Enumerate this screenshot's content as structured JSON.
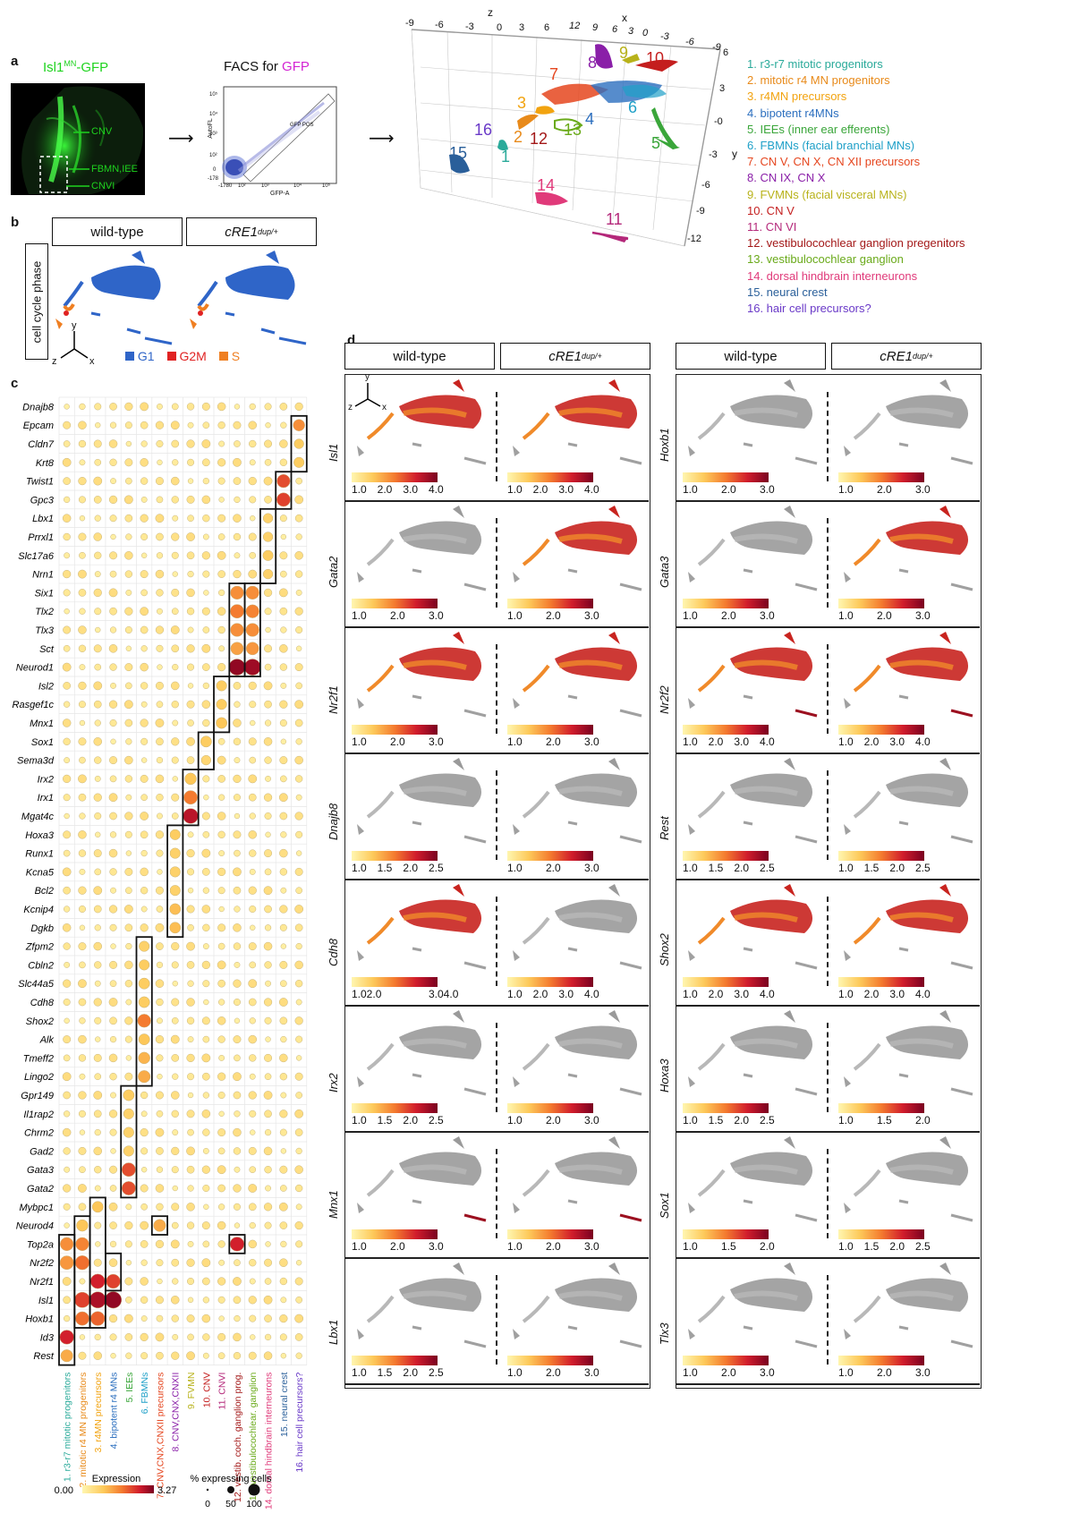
{
  "panels": {
    "a": "a",
    "b": "b",
    "c": "c",
    "d": "d"
  },
  "panel_a": {
    "micro_title_pre": "Isl1",
    "micro_title_sup": "MN",
    "micro_title_post": "-GFP",
    "micro_labels": [
      "CNV",
      "FBMN,IEE",
      "CNVI"
    ],
    "facs_title_pre": "FACS for ",
    "facs_title_gfp": "GFP",
    "facs_xlabel": "GFP-A",
    "facs_ylabel": "AutoFL",
    "facs_gate": "GFP POS",
    "facs_xticks": [
      "-178",
      "0",
      "10²",
      "10³",
      "10⁴",
      "10⁵"
    ],
    "facs_yticks": [
      "10⁵",
      "10⁴",
      "10³",
      "10²",
      "0",
      "-178"
    ],
    "axis_x_label": "x",
    "axis_y_label": "y",
    "axis_z_label": "z",
    "top_ticks": [
      "-9",
      "-6",
      "-3",
      "0",
      "3",
      "6",
      "12",
      "9",
      "6",
      "3",
      "0",
      "-3",
      "-6",
      "-9"
    ],
    "right_ticks": [
      "6",
      "3",
      "-0",
      "-3",
      "-6",
      "-9",
      "-12"
    ],
    "cluster_numbers": [
      "1",
      "2",
      "3",
      "4",
      "5",
      "6",
      "7",
      "8",
      "9",
      "10",
      "11",
      "12",
      "13",
      "14",
      "15",
      "16"
    ],
    "cluster_legend": [
      {
        "text": "1. r3-r7 mitotic progenitors",
        "color": "#2aaa9a"
      },
      {
        "text": "2. mitotic r4 MN progenitors",
        "color": "#e88a1a"
      },
      {
        "text": "3. r4MN precursors",
        "color": "#f2a30f"
      },
      {
        "text": "4. bipotent r4MNs",
        "color": "#2c6fbf"
      },
      {
        "text": "5. IEEs (inner ear efferents)",
        "color": "#3aa63a"
      },
      {
        "text": "6. FBMNs (facial branchial MNs)",
        "color": "#1fa0c8"
      },
      {
        "text": "7. CN V, CN X, CN XII precursors",
        "color": "#e5461f"
      },
      {
        "text": "8. CN IX, CN X",
        "color": "#8a1fa8"
      },
      {
        "text": "9. FVMNs (facial visceral MNs)",
        "color": "#b8b21a"
      },
      {
        "text": "10. CN V",
        "color": "#c41e1e"
      },
      {
        "text": "11. CN VI",
        "color": "#b4287a"
      },
      {
        "text": "12. vestibulocochlear ganglion pregenitors",
        "color": "#a31818"
      },
      {
        "text": "13. vestibulocochlear ganglion",
        "color": "#6aaa1a"
      },
      {
        "text": "14. dorsal hindbrain interneurons",
        "color": "#e03a7a"
      },
      {
        "text": "15. neural crest",
        "color": "#2a5f9a"
      },
      {
        "text": "16. hair cell precursors?",
        "color": "#6a3ac8"
      }
    ]
  },
  "panel_b": {
    "row_label": "cell cycle phase",
    "wt": "wild-type",
    "mut_pre": "cRE1",
    "mut_sup": "dup/+",
    "phases": [
      {
        "name": "G1",
        "color": "#2f65c8"
      },
      {
        "name": "G2M",
        "color": "#e02222"
      },
      {
        "name": "S",
        "color": "#ef7f22"
      }
    ],
    "axes": {
      "y": "y",
      "z": "z",
      "x": "x"
    }
  },
  "panel_c": {
    "genes": [
      "Dnajb8",
      "Epcam",
      "Cldn7",
      "Krt8",
      "Twist1",
      "Gpc3",
      "Lbx1",
      "Prrxl1",
      "Slc17a6",
      "Nrn1",
      "Six1",
      "Tlx2",
      "Tlx3",
      "Sct",
      "Neurod1",
      "Isl2",
      "Rasgef1c",
      "Mnx1",
      "Sox1",
      "Sema3d",
      "Irx2",
      "Irx1",
      "Mgat4c",
      "Hoxa3",
      "Runx1",
      "Kcna5",
      "Bcl2",
      "Kcnip4",
      "Dgkb",
      "Zfpm2",
      "Cbln2",
      "Slc44a5",
      "Cdh8",
      "Shox2",
      "Alk",
      "Tmeff2",
      "Lingo2",
      "Gpr149",
      "Il1rap2",
      "Chrm2",
      "Gad2",
      "Gata3",
      "Gata2",
      "Mybpc1",
      "Neurod4",
      "Top2a",
      "Nr2f2",
      "Nr2f1",
      "Isl1",
      "Hoxb1",
      "Id3",
      "Rest"
    ],
    "clusters": [
      {
        "text": "1. r3-r7 mitotic progenitors",
        "color": "#2aaa9a"
      },
      {
        "text": "2. mitotic r4 MN progenitors",
        "color": "#e88a1a"
      },
      {
        "text": "3. r4MN precursors",
        "color": "#f2a30f"
      },
      {
        "text": "4. bipotent r4 MNs",
        "color": "#2c6fbf"
      },
      {
        "text": "5. IEEs",
        "color": "#3aa63a"
      },
      {
        "text": "6. FBMNs",
        "color": "#1fa0c8"
      },
      {
        "text": "7. CNV,CNX,CNXII precursors",
        "color": "#e5461f"
      },
      {
        "text": "8. CNV,CNX,CNXII",
        "color": "#8a1fa8"
      },
      {
        "text": "9. FVMN",
        "color": "#b8b21a"
      },
      {
        "text": "10. CNV",
        "color": "#c41e1e"
      },
      {
        "text": "11. CNVI",
        "color": "#b4287a"
      },
      {
        "text": "12. vestib. coch. ganglion prog.",
        "color": "#a31818"
      },
      {
        "text": "13. vestibulocochlear. ganglion",
        "color": "#6aaa1a"
      },
      {
        "text": "14. dorsal hindbrain interneurons",
        "color": "#e03a7a"
      },
      {
        "text": "15. neural crest",
        "color": "#2a5f9a"
      },
      {
        "text": "16. hair cell precursors?",
        "color": "#6a3ac8"
      }
    ],
    "expr_title": "Expression",
    "expr_min": "0.00",
    "expr_max": "3.27",
    "pct_title": "% expressing cells",
    "pct_ticks": [
      "0",
      "50",
      "100"
    ]
  },
  "chart_data": {
    "type": "dotplot",
    "expression_range": [
      0.0,
      3.27
    ],
    "percent_range": [
      0,
      100
    ],
    "rows": [
      "Dnajb8",
      "Epcam",
      "Cldn7",
      "Krt8",
      "Twist1",
      "Gpc3",
      "Lbx1",
      "Prrxl1",
      "Slc17a6",
      "Nrn1",
      "Six1",
      "Tlx2",
      "Tlx3",
      "Sct",
      "Neurod1",
      "Isl2",
      "Rasgef1c",
      "Mnx1",
      "Sox1",
      "Sema3d",
      "Irx2",
      "Irx1",
      "Mgat4c",
      "Hoxa3",
      "Runx1",
      "Kcna5",
      "Bcl2",
      "Kcnip4",
      "Dgkb",
      "Zfpm2",
      "Cbln2",
      "Slc44a5",
      "Cdh8",
      "Shox2",
      "Alk",
      "Tmeff2",
      "Lingo2",
      "Gpr149",
      "Il1rap2",
      "Chrm2",
      "Gad2",
      "Gata3",
      "Gata2",
      "Mybpc1",
      "Neurod4",
      "Top2a",
      "Nr2f2",
      "Nr2f1",
      "Isl1",
      "Hoxb1",
      "Id3",
      "Rest"
    ],
    "highlight_blocks": [
      {
        "cluster": 16,
        "rows": [
          1,
          3
        ]
      },
      {
        "cluster": 15,
        "rows": [
          4,
          5
        ]
      },
      {
        "cluster": 14,
        "rows": [
          6,
          9
        ]
      },
      {
        "cluster": 13,
        "rows": [
          10,
          14
        ]
      },
      {
        "cluster": 12,
        "rows": [
          10,
          14
        ]
      },
      {
        "cluster": 11,
        "rows": [
          15,
          17
        ]
      },
      {
        "cluster": 10,
        "rows": [
          18,
          19
        ]
      },
      {
        "cluster": 9,
        "rows": [
          20,
          22
        ]
      },
      {
        "cluster": 8,
        "rows": [
          23,
          28
        ]
      },
      {
        "cluster": 7,
        "rows": [
          44,
          44
        ]
      },
      {
        "cluster": 6,
        "rows": [
          29,
          36
        ]
      },
      {
        "cluster": 5,
        "rows": [
          37,
          42
        ]
      },
      {
        "cluster": 4,
        "rows": [
          46,
          47
        ]
      },
      {
        "cluster": 3,
        "rows": [
          43,
          49
        ]
      },
      {
        "cluster": 2,
        "rows": [
          44,
          49
        ]
      },
      {
        "cluster": 1,
        "rows": [
          45,
          51
        ]
      },
      {
        "cluster": 12,
        "rows": [
          45,
          45
        ]
      }
    ],
    "strong_dots": [
      {
        "row": "Epcam",
        "cluster": 16,
        "expr": 1.6,
        "pct": 40
      },
      {
        "row": "Cldn7",
        "cluster": 16,
        "expr": 0.9,
        "pct": 25
      },
      {
        "row": "Krt8",
        "cluster": 16,
        "expr": 0.9,
        "pct": 30
      },
      {
        "row": "Twist1",
        "cluster": 15,
        "expr": 2.2,
        "pct": 55
      },
      {
        "row": "Gpc3",
        "cluster": 15,
        "expr": 2.3,
        "pct": 60
      },
      {
        "row": "Lbx1",
        "cluster": 14,
        "expr": 0.8,
        "pct": 25
      },
      {
        "row": "Prrxl1",
        "cluster": 14,
        "expr": 0.8,
        "pct": 25
      },
      {
        "row": "Slc17a6",
        "cluster": 14,
        "expr": 0.9,
        "pct": 30
      },
      {
        "row": "Nrn1",
        "cluster": 14,
        "expr": 0.8,
        "pct": 25
      },
      {
        "row": "Six1",
        "cluster": 12,
        "expr": 1.6,
        "pct": 55
      },
      {
        "row": "Six1",
        "cluster": 13,
        "expr": 1.6,
        "pct": 55
      },
      {
        "row": "Tlx2",
        "cluster": 12,
        "expr": 1.8,
        "pct": 60
      },
      {
        "row": "Tlx2",
        "cluster": 13,
        "expr": 1.7,
        "pct": 55
      },
      {
        "row": "Tlx3",
        "cluster": 12,
        "expr": 1.6,
        "pct": 55
      },
      {
        "row": "Tlx3",
        "cluster": 13,
        "expr": 1.6,
        "pct": 55
      },
      {
        "row": "Sct",
        "cluster": 12,
        "expr": 1.4,
        "pct": 50
      },
      {
        "row": "Sct",
        "cluster": 13,
        "expr": 1.5,
        "pct": 50
      },
      {
        "row": "Neurod1",
        "cluster": 12,
        "expr": 3.1,
        "pct": 90
      },
      {
        "row": "Neurod1",
        "cluster": 13,
        "expr": 3.0,
        "pct": 90
      },
      {
        "row": "Isl2",
        "cluster": 11,
        "expr": 0.9,
        "pct": 30
      },
      {
        "row": "Rasgef1c",
        "cluster": 11,
        "expr": 0.9,
        "pct": 30
      },
      {
        "row": "Mnx1",
        "cluster": 11,
        "expr": 1.0,
        "pct": 35
      },
      {
        "row": "Sox1",
        "cluster": 10,
        "expr": 0.9,
        "pct": 35
      },
      {
        "row": "Sema3d",
        "cluster": 10,
        "expr": 0.7,
        "pct": 25
      },
      {
        "row": "Irx2",
        "cluster": 9,
        "expr": 1.0,
        "pct": 40
      },
      {
        "row": "Irx1",
        "cluster": 9,
        "expr": 1.8,
        "pct": 60
      },
      {
        "row": "Mgat4c",
        "cluster": 9,
        "expr": 2.8,
        "pct": 75
      },
      {
        "row": "Hoxa3",
        "cluster": 8,
        "expr": 0.9,
        "pct": 30
      },
      {
        "row": "Runx1",
        "cluster": 8,
        "expr": 0.8,
        "pct": 30
      },
      {
        "row": "Kcna5",
        "cluster": 8,
        "expr": 0.8,
        "pct": 30
      },
      {
        "row": "Bcl2",
        "cluster": 8,
        "expr": 0.8,
        "pct": 30
      },
      {
        "row": "Kcnip4",
        "cluster": 8,
        "expr": 1.1,
        "pct": 35
      },
      {
        "row": "Dgkb",
        "cluster": 8,
        "expr": 1.1,
        "pct": 35
      },
      {
        "row": "Zfpm2",
        "cluster": 6,
        "expr": 0.8,
        "pct": 30
      },
      {
        "row": "Cbln2",
        "cluster": 6,
        "expr": 0.9,
        "pct": 30
      },
      {
        "row": "Slc44a5",
        "cluster": 6,
        "expr": 0.9,
        "pct": 35
      },
      {
        "row": "Cdh8",
        "cluster": 6,
        "expr": 0.9,
        "pct": 35
      },
      {
        "row": "Shox2",
        "cluster": 6,
        "expr": 1.8,
        "pct": 55
      },
      {
        "row": "Alk",
        "cluster": 6,
        "expr": 1.0,
        "pct": 35
      },
      {
        "row": "Tmeff2",
        "cluster": 6,
        "expr": 1.2,
        "pct": 40
      },
      {
        "row": "Lingo2",
        "cluster": 6,
        "expr": 1.3,
        "pct": 45
      },
      {
        "row": "Gpr149",
        "cluster": 5,
        "expr": 0.9,
        "pct": 35
      },
      {
        "row": "Il1rap2",
        "cluster": 5,
        "expr": 0.8,
        "pct": 30
      },
      {
        "row": "Chrm2",
        "cluster": 5,
        "expr": 0.8,
        "pct": 30
      },
      {
        "row": "Gad2",
        "cluster": 5,
        "expr": 0.8,
        "pct": 30
      },
      {
        "row": "Gata3",
        "cluster": 5,
        "expr": 2.2,
        "pct": 60
      },
      {
        "row": "Gata2",
        "cluster": 5,
        "expr": 2.2,
        "pct": 60
      },
      {
        "row": "Mybpc1",
        "cluster": 3,
        "expr": 1.0,
        "pct": 35
      },
      {
        "row": "Neurod4",
        "cluster": 2,
        "expr": 1.0,
        "pct": 40
      },
      {
        "row": "Neurod4",
        "cluster": 7,
        "expr": 1.3,
        "pct": 45
      },
      {
        "row": "Top2a",
        "cluster": 1,
        "expr": 1.6,
        "pct": 55
      },
      {
        "row": "Top2a",
        "cluster": 2,
        "expr": 1.7,
        "pct": 55
      },
      {
        "row": "Top2a",
        "cluster": 12,
        "expr": 2.6,
        "pct": 65
      },
      {
        "row": "Nr2f2",
        "cluster": 1,
        "expr": 1.5,
        "pct": 60
      },
      {
        "row": "Nr2f2",
        "cluster": 2,
        "expr": 1.9,
        "pct": 65
      },
      {
        "row": "Nr2f1",
        "cluster": 3,
        "expr": 2.6,
        "pct": 70
      },
      {
        "row": "Nr2f1",
        "cluster": 4,
        "expr": 2.3,
        "pct": 65
      },
      {
        "row": "Isl1",
        "cluster": 2,
        "expr": 2.3,
        "pct": 80
      },
      {
        "row": "Isl1",
        "cluster": 3,
        "expr": 2.9,
        "pct": 90
      },
      {
        "row": "Isl1",
        "cluster": 4,
        "expr": 3.1,
        "pct": 95
      },
      {
        "row": "Hoxb1",
        "cluster": 2,
        "expr": 1.9,
        "pct": 60
      },
      {
        "row": "Hoxb1",
        "cluster": 3,
        "expr": 2.0,
        "pct": 65
      },
      {
        "row": "Id3",
        "cluster": 1,
        "expr": 2.6,
        "pct": 65
      },
      {
        "row": "Rest",
        "cluster": 1,
        "expr": 1.3,
        "pct": 45
      }
    ]
  },
  "panel_d": {
    "headers": {
      "wt": "wild-type",
      "mut_pre": "cRE1",
      "mut_sup": "dup/+"
    },
    "left_genes": [
      {
        "gene": "Isl1",
        "wt_ticks": [
          "1.0",
          "2.0",
          "3.0",
          "4.0"
        ],
        "mut_ticks": [
          "1.0",
          "2.0",
          "3.0",
          "4.0"
        ]
      },
      {
        "gene": "Gata2",
        "wt_ticks": [
          "1.0",
          "2.0",
          "3.0"
        ],
        "mut_ticks": [
          "1.0",
          "2.0",
          "3.0"
        ]
      },
      {
        "gene": "Nr2f1",
        "wt_ticks": [
          "1.0",
          "2.0",
          "3.0"
        ],
        "mut_ticks": [
          "1.0",
          "2.0",
          "3.0"
        ]
      },
      {
        "gene": "Dnajb8",
        "wt_ticks": [
          "1.0",
          "1.5",
          "2.0",
          "2.5"
        ],
        "mut_ticks": [
          "1.0",
          "2.0",
          "3.0"
        ]
      },
      {
        "gene": "Cdh8",
        "wt_ticks": [
          "1.02.0",
          "3.04.0"
        ],
        "mut_ticks": [
          "1.0",
          "2.0",
          "3.0",
          "4.0"
        ]
      },
      {
        "gene": "Irx2",
        "wt_ticks": [
          "1.0",
          "1.5",
          "2.0",
          "2.5"
        ],
        "mut_ticks": [
          "1.0",
          "2.0",
          "3.0"
        ]
      },
      {
        "gene": "Mnx1",
        "wt_ticks": [
          "1.0",
          "2.0",
          "3.0"
        ],
        "mut_ticks": [
          "1.0",
          "2.0",
          "3.0"
        ]
      },
      {
        "gene": "Lbx1",
        "wt_ticks": [
          "1.0",
          "1.5",
          "2.0",
          "2.5"
        ],
        "mut_ticks": [
          "1.0",
          "2.0",
          "3.0"
        ]
      }
    ],
    "right_genes": [
      {
        "gene": "Hoxb1",
        "wt_ticks": [
          "1.0",
          "2.0",
          "3.0"
        ],
        "mut_ticks": [
          "1.0",
          "2.0",
          "3.0"
        ]
      },
      {
        "gene": "Gata3",
        "wt_ticks": [
          "1.0",
          "2.0",
          "3.0"
        ],
        "mut_ticks": [
          "1.0",
          "2.0",
          "3.0"
        ]
      },
      {
        "gene": "Nr2f2",
        "wt_ticks": [
          "1.0",
          "2.0",
          "3.0",
          "4.0"
        ],
        "mut_ticks": [
          "1.0",
          "2.0",
          "3.0",
          "4.0"
        ]
      },
      {
        "gene": "Rest",
        "wt_ticks": [
          "1.0",
          "1.5",
          "2.0",
          "2.5"
        ],
        "mut_ticks": [
          "1.0",
          "1.5",
          "2.0",
          "2.5"
        ]
      },
      {
        "gene": "Shox2",
        "wt_ticks": [
          "1.0",
          "2.0",
          "3.0",
          "4.0"
        ],
        "mut_ticks": [
          "1.0",
          "2.0",
          "3.0",
          "4.0"
        ]
      },
      {
        "gene": "Hoxa3",
        "wt_ticks": [
          "1.0",
          "1.5",
          "2.0",
          "2.5"
        ],
        "mut_ticks": [
          "1.0",
          "1.5",
          "2.0"
        ]
      },
      {
        "gene": "Sox1",
        "wt_ticks": [
          "1.0",
          "1.5",
          "2.0"
        ],
        "mut_ticks": [
          "1.0",
          "1.5",
          "2.0",
          "2.5"
        ]
      },
      {
        "gene": "Tlx3",
        "wt_ticks": [
          "1.0",
          "2.0",
          "3.0"
        ],
        "mut_ticks": [
          "1.0",
          "2.0",
          "3.0"
        ]
      }
    ],
    "axes": {
      "y": "y",
      "z": "z",
      "x": "x"
    }
  }
}
